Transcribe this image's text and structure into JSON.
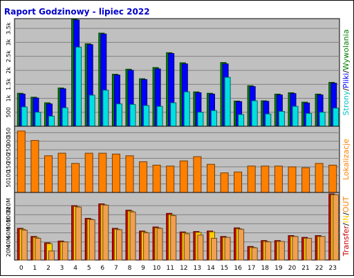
{
  "title": "Raport Godzinowy -  lipiec 2022",
  "x_ticks": [
    "0",
    "1",
    "2",
    "3",
    "4",
    "5",
    "6",
    "7",
    "8",
    "9",
    "10",
    "11",
    "12",
    "13",
    "14",
    "15",
    "16",
    "17",
    "18",
    "19",
    "20",
    "21",
    "22",
    "23"
  ],
  "chart_data": [
    {
      "type": "bar",
      "panel": "top",
      "categories": [
        "0",
        "1",
        "2",
        "3",
        "4",
        "5",
        "6",
        "7",
        "8",
        "9",
        "10",
        "11",
        "12",
        "13",
        "14",
        "15",
        "16",
        "17",
        "18",
        "19",
        "20",
        "21",
        "22",
        "23"
      ],
      "ylim": [
        0,
        3800
      ],
      "y_ticks": [
        "500",
        "1k",
        "1.5k",
        "2k",
        "2.5k",
        "3k",
        "3.5k"
      ],
      "y_tick_values": [
        500,
        1000,
        1500,
        2000,
        2500,
        3000,
        3500
      ],
      "grid": true,
      "side_label": [
        "Strony",
        "/",
        "Pliki",
        "/",
        "Wywolania"
      ],
      "side_label_colors": [
        "#00c0c0",
        "#000000",
        "#0000ff",
        "#000000",
        "#008000"
      ],
      "series": [
        {
          "name": "Wywolania",
          "color": "#008000",
          "values": [
            1180,
            1040,
            840,
            1370,
            3830,
            2950,
            3330,
            1860,
            2040,
            1700,
            2100,
            2630,
            2270,
            1230,
            1180,
            2280,
            900,
            1450,
            910,
            1150,
            1200,
            860,
            1150,
            1570
          ]
        },
        {
          "name": "Pliki",
          "color": "#0000ff",
          "values": [
            1150,
            1010,
            800,
            1340,
            3800,
            2920,
            3300,
            1830,
            2000,
            1670,
            2050,
            2600,
            2230,
            1200,
            1150,
            2230,
            880,
            1420,
            890,
            1120,
            1170,
            830,
            1120,
            1540
          ]
        },
        {
          "name": "Strony",
          "color": "#00e0e0",
          "values": [
            690,
            500,
            360,
            660,
            2830,
            1110,
            1290,
            800,
            780,
            740,
            710,
            840,
            1230,
            500,
            560,
            1750,
            420,
            910,
            440,
            530,
            710,
            460,
            500,
            650
          ]
        }
      ]
    },
    {
      "type": "bar",
      "panel": "middle",
      "categories": [
        "0",
        "1",
        "2",
        "3",
        "4",
        "5",
        "6",
        "7",
        "8",
        "9",
        "10",
        "11",
        "12",
        "13",
        "14",
        "15",
        "16",
        "17",
        "18",
        "19",
        "20",
        "21",
        "22",
        "23"
      ],
      "ylim": [
        0,
        380
      ],
      "y_ticks": [
        "50",
        "100",
        "150",
        "200",
        "250",
        "300",
        "350"
      ],
      "y_tick_values": [
        50,
        100,
        150,
        200,
        250,
        300,
        350
      ],
      "grid": true,
      "side_label": [
        "Lokalizacje"
      ],
      "side_label_colors": [
        "#ff8000"
      ],
      "series": [
        {
          "name": "Lokalizacje",
          "color": "#ff8000",
          "values": [
            360,
            305,
            215,
            230,
            170,
            230,
            230,
            225,
            215,
            180,
            160,
            155,
            185,
            210,
            165,
            115,
            120,
            155,
            155,
            155,
            150,
            145,
            170,
            160
          ]
        }
      ]
    },
    {
      "type": "bar",
      "panel": "bottom",
      "categories": [
        "0",
        "1",
        "2",
        "3",
        "4",
        "5",
        "6",
        "7",
        "8",
        "9",
        "10",
        "11",
        "12",
        "13",
        "14",
        "15",
        "16",
        "17",
        "18",
        "19",
        "20",
        "21",
        "22",
        "23"
      ],
      "ylim": [
        0,
        146
      ],
      "y_ticks": [
        "20M",
        "40M",
        "60M",
        "80M",
        "100M",
        "120M"
      ],
      "y_tick_values": [
        20,
        40,
        60,
        80,
        100,
        120
      ],
      "grid": true,
      "side_label": [
        "Transfer",
        "/",
        "IN",
        "/",
        "OUT"
      ],
      "side_label_colors": [
        "#cc0000",
        "#000000",
        "#ffcc00",
        "#000000",
        "#ff8000"
      ],
      "series": [
        {
          "name": "Transfer",
          "color": "#cc0000",
          "values": [
            70,
            52,
            38,
            42,
            120,
            92,
            124,
            70,
            110,
            64,
            73,
            103,
            62,
            63,
            64,
            52,
            71,
            30,
            43,
            43,
            54,
            50,
            54,
            146
          ]
        },
        {
          "name": "IN",
          "color": "#ffcc00",
          "values": [
            68,
            50,
            36,
            40,
            118,
            90,
            122,
            68,
            108,
            62,
            71,
            100,
            60,
            61,
            62,
            50,
            69,
            28,
            41,
            41,
            52,
            48,
            52,
            144
          ]
        },
        {
          "name": "OUT",
          "color": "#f0a050",
          "values": [
            66,
            48,
            20,
            40,
            117,
            89,
            121,
            67,
            106,
            60,
            70,
            98,
            58,
            55,
            48,
            50,
            68,
            27,
            40,
            41,
            52,
            48,
            52,
            144
          ]
        }
      ]
    }
  ]
}
